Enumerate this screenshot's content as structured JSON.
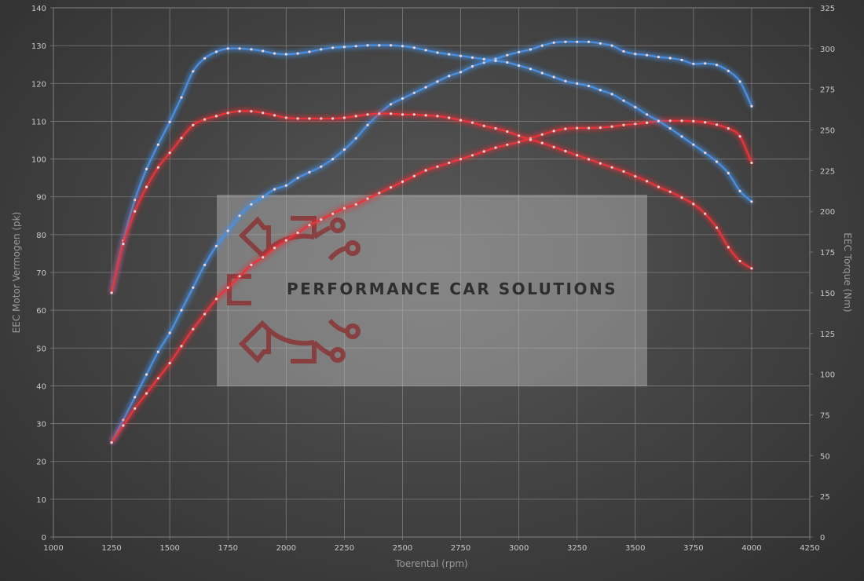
{
  "chart_data": {
    "type": "line",
    "x": [
      1250,
      1300,
      1350,
      1400,
      1450,
      1500,
      1550,
      1600,
      1650,
      1700,
      1750,
      1800,
      1850,
      1900,
      1950,
      2000,
      2050,
      2100,
      2150,
      2200,
      2250,
      2300,
      2350,
      2400,
      2450,
      2500,
      2550,
      2600,
      2650,
      2700,
      2750,
      2800,
      2850,
      2900,
      2950,
      3000,
      3050,
      3100,
      3150,
      3200,
      3250,
      3300,
      3350,
      3400,
      3450,
      3500,
      3550,
      3600,
      3650,
      3700,
      3750,
      3800,
      3850,
      3900,
      3950,
      4000
    ],
    "xlabel": "Toerental (rpm)",
    "ylabel_left": "EEC Motor Vermogen (pk)",
    "ylabel_right": "EEC Torque (Nm)",
    "xlim": [
      1000,
      4250
    ],
    "xticks": [
      "1000",
      "1250",
      "1500",
      "1750",
      "2000",
      "2250",
      "2500",
      "2750",
      "3000",
      "3250",
      "3500",
      "3750",
      "4000",
      "4250"
    ],
    "ylim_left": [
      0,
      140
    ],
    "yticks_left": [
      "0",
      "10",
      "20",
      "30",
      "40",
      "50",
      "60",
      "70",
      "80",
      "90",
      "100",
      "110",
      "120",
      "130",
      "140"
    ],
    "ylim_right": [
      0,
      325
    ],
    "yticks_right": [
      "0",
      "25",
      "50",
      "75",
      "100",
      "125",
      "150",
      "175",
      "200",
      "225",
      "250",
      "275",
      "300",
      "325"
    ],
    "grid": true,
    "colors": {
      "tuned": "#4a90e2",
      "stock": "#e8363a"
    },
    "series": [
      {
        "axis": "left",
        "color": "#4a90e2",
        "values": [
          25,
          31,
          37,
          43,
          49,
          54,
          60,
          66,
          72,
          77,
          81,
          85,
          88,
          90,
          92,
          93,
          95,
          96.5,
          98,
          100,
          102.5,
          105.5,
          109,
          112,
          114.5,
          116,
          117.5,
          119,
          120.5,
          122,
          123,
          124.5,
          125.5,
          126.5,
          127.5,
          128.3,
          129,
          130,
          130.8,
          131,
          131,
          131,
          130.6,
          130,
          128.5,
          127.8,
          127.5,
          127,
          126.7,
          126.2,
          125.2,
          125.3,
          124.9,
          123.3,
          120.5,
          114
        ]
      },
      {
        "axis": "left",
        "color": "#e8363a",
        "values": [
          25,
          29.5,
          34,
          38,
          42,
          46,
          50.5,
          55,
          59,
          63,
          66,
          69,
          72,
          74,
          76.5,
          78.5,
          80.5,
          82.5,
          84,
          85.5,
          87,
          88,
          89.5,
          91,
          92.5,
          94,
          95.5,
          97,
          98,
          99,
          100,
          101,
          102,
          103,
          103.8,
          104.5,
          105.5,
          106.5,
          107.4,
          108,
          108.2,
          108.2,
          108.3,
          108.6,
          109,
          109.3,
          109.6,
          110,
          110.1,
          110.1,
          110,
          109.7,
          109.1,
          108.1,
          106,
          99
        ]
      },
      {
        "axis": "right",
        "color": "#4a90e2",
        "values": [
          150,
          182,
          207,
          226,
          241,
          255,
          270,
          286,
          294,
          298,
          300,
          300,
          299.5,
          298.5,
          297,
          296.5,
          297,
          298,
          299.5,
          300.5,
          301,
          301.5,
          302,
          302,
          302,
          301.5,
          300.5,
          299,
          297.5,
          296.5,
          295.5,
          294.5,
          293.5,
          292.5,
          291.5,
          289.5,
          287.5,
          285,
          282.5,
          280,
          278.5,
          277,
          274.5,
          272,
          268,
          264,
          259.5,
          255.5,
          251,
          246,
          241,
          236,
          230.5,
          223.5,
          212.5,
          206
        ]
      },
      {
        "axis": "right",
        "color": "#e8363a",
        "values": [
          150,
          180,
          200,
          215,
          227,
          236,
          245,
          253,
          256.5,
          258.5,
          260.5,
          261.5,
          261.5,
          260.5,
          259,
          257.5,
          257,
          257,
          257,
          257,
          257.5,
          258.5,
          259.5,
          260,
          260,
          259.5,
          259.5,
          259,
          258.5,
          257.5,
          256,
          254.5,
          252.5,
          251,
          249,
          246.5,
          244,
          242,
          239.5,
          237,
          234.5,
          232,
          229.5,
          227,
          224.5,
          221.5,
          218.5,
          215,
          212,
          208.5,
          204.5,
          198.5,
          190,
          178,
          169.5,
          165
        ]
      }
    ]
  },
  "watermark": {
    "text": "PERFORMANCE CAR SOLUTIONS"
  }
}
